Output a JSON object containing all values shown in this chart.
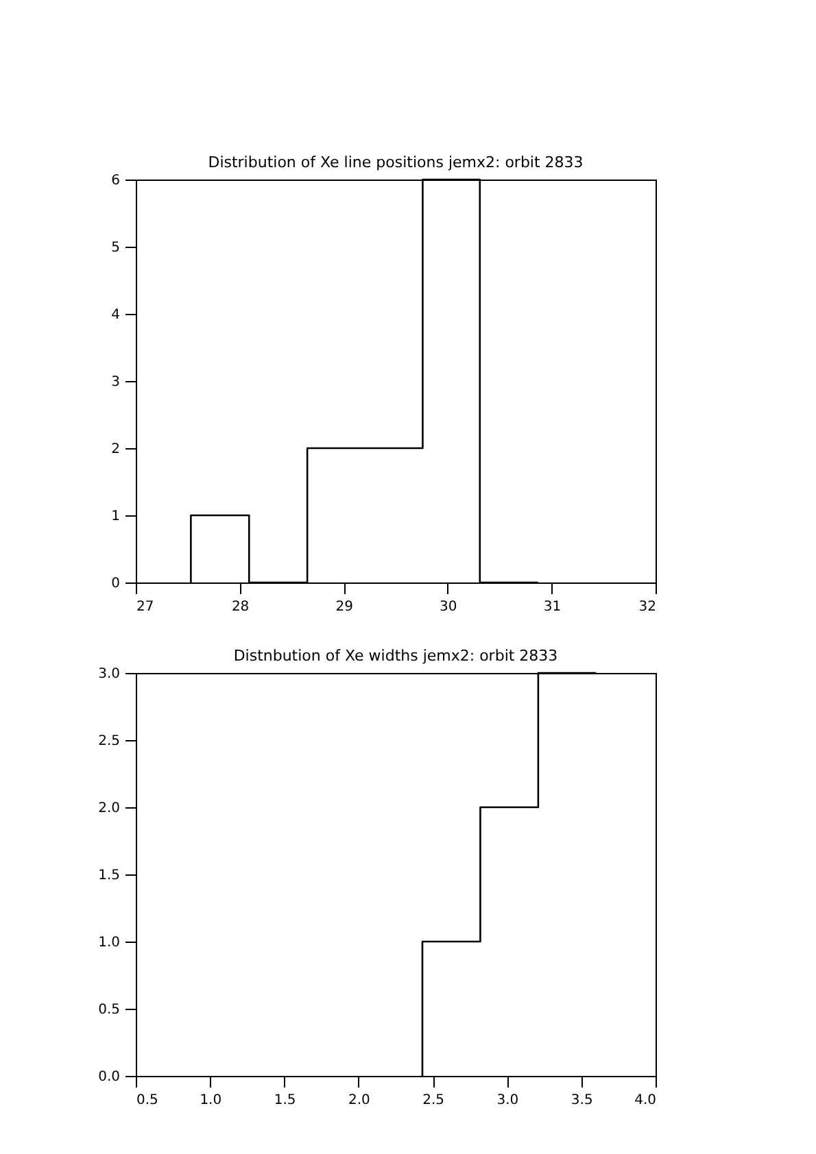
{
  "chart_data": [
    {
      "type": "histogram",
      "title": "Distribution of Xe line positions jemx2: orbit 2833",
      "bins": [
        27.53,
        28.09,
        28.65,
        29.2,
        29.76,
        30.31,
        30.87
      ],
      "values": [
        1,
        0,
        2,
        2,
        6,
        0
      ],
      "color": "#000000",
      "xlim": [
        27,
        32
      ],
      "xticks": [
        27,
        28,
        29,
        30,
        31,
        32
      ],
      "ylim": [
        0,
        6
      ],
      "yticks": [
        0,
        1,
        2,
        3,
        4,
        5,
        6
      ],
      "grid": false
    },
    {
      "type": "histogram",
      "title": "Distnbution of Xe widths jemx2: orbit 2833",
      "bins": [
        2.43,
        2.82,
        3.21,
        3.6
      ],
      "values": [
        1,
        2,
        3
      ],
      "color": "#000000",
      "xlim": [
        0.5,
        4.0
      ],
      "xticks": [
        {
          "value": 0.5,
          "label": "0.5"
        },
        {
          "value": 1.0,
          "label": "1.0"
        },
        {
          "value": 1.5,
          "label": "1.5"
        },
        {
          "value": 2.0,
          "label": "2.0"
        },
        {
          "value": 2.5,
          "label": "2.5"
        },
        {
          "value": 3.0,
          "label": "3.0"
        },
        {
          "value": 3.5,
          "label": "3.5"
        },
        {
          "value": 4.0,
          "label": "4.0"
        }
      ],
      "ylim": [
        0,
        3.0
      ],
      "yticks": [
        {
          "value": 0,
          "label": "0.0"
        },
        {
          "value": 0.5,
          "label": "0.5"
        },
        {
          "value": 1.0,
          "label": "1.0"
        },
        {
          "value": 1.5,
          "label": "1.5"
        },
        {
          "value": 2.0,
          "label": "2.0"
        },
        {
          "value": 2.5,
          "label": "2.5"
        },
        {
          "value": 3.0,
          "label": "3.0"
        }
      ],
      "grid": false
    }
  ]
}
